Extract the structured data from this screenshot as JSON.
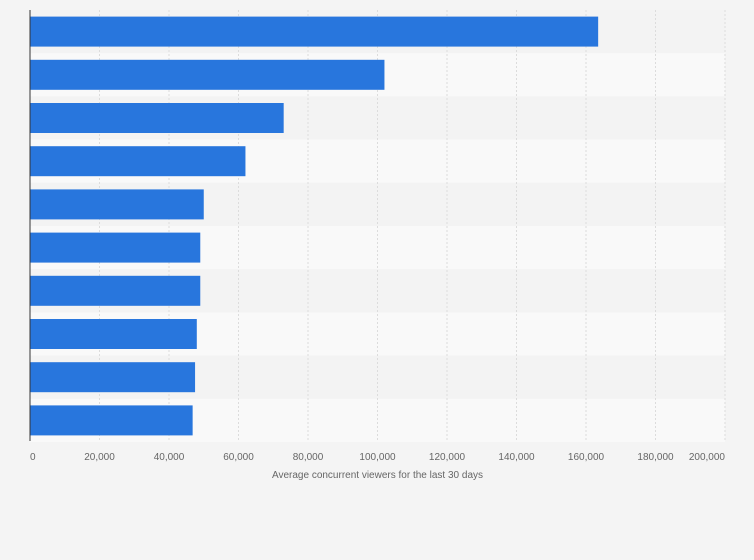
{
  "chart_data": {
    "type": "bar",
    "orientation": "horizontal",
    "categories": [
      "",
      "",
      "",
      "",
      "",
      "",
      "",
      "",
      "",
      ""
    ],
    "values": [
      163500,
      102000,
      73000,
      62000,
      50000,
      49000,
      49000,
      48000,
      47500,
      46800
    ],
    "xlabel": "Average concurrent viewers for the last 30 days",
    "xlim": [
      0,
      200000
    ],
    "x_ticks": [
      0,
      20000,
      40000,
      60000,
      80000,
      100000,
      120000,
      140000,
      160000,
      180000,
      200000
    ],
    "x_tick_labels": [
      "0",
      "20,000",
      "40,000",
      "60,000",
      "80,000",
      "100,000",
      "120,000",
      "140,000",
      "160,000",
      "180,000",
      "200,000"
    ],
    "grid": true,
    "colors": {
      "bar": "#2876dd",
      "band_light": "#f9f9f9",
      "band_dark": "#f3f3f3",
      "gridline": "#dcdcdc",
      "axis": "#333333",
      "text": "#666666"
    }
  }
}
